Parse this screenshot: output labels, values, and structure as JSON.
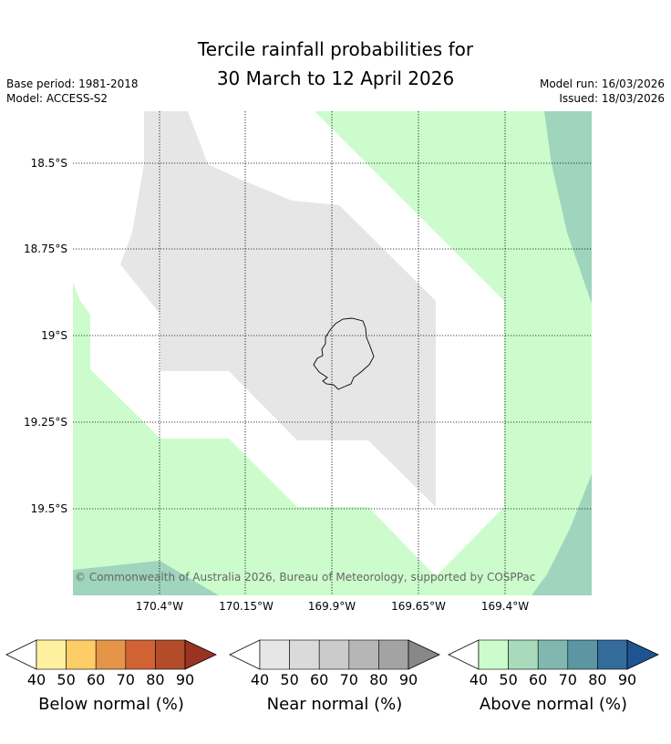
{
  "title": {
    "line1": "Tercile rainfall probabilities for",
    "line2": "30 March to 12 April 2026"
  },
  "meta": {
    "base_period": "Base period: 1981-2018",
    "model": "Model: ACCESS-S2",
    "model_run": "Model run: 16/03/2026",
    "issued": "Issued: 18/03/2026"
  },
  "axes": {
    "lat_labels": [
      "18.5°S",
      "18.75°S",
      "19°S",
      "19.25°S",
      "19.5°S"
    ],
    "lon_labels": [
      "170.4°W",
      "170.15°W",
      "169.9°W",
      "169.65°W",
      "169.4°W"
    ]
  },
  "copyright": "© Commonwealth of Australia 2026, Bureau of Meteorology, supported by COSPPac",
  "colors": {
    "near_40": "#e6e6e6",
    "above_40": "#ccfccc",
    "above_50": "#9fd4bd",
    "coast": "#000000"
  },
  "legends": [
    {
      "label": "Below normal (%)",
      "ticks": [
        "40",
        "50",
        "60",
        "70",
        "80",
        "90"
      ],
      "colors": [
        "#fff0a0",
        "#ffcd68",
        "#e49548",
        "#d06234",
        "#b24c2a",
        "#9b3322"
      ]
    },
    {
      "label": "Near normal (%)",
      "ticks": [
        "40",
        "50",
        "60",
        "70",
        "80",
        "90"
      ],
      "colors": [
        "#e6e6e6",
        "#dadada",
        "#cbcbcb",
        "#b6b6b6",
        "#a3a3a3",
        "#888888"
      ]
    },
    {
      "label": "Above normal (%)",
      "ticks": [
        "40",
        "50",
        "60",
        "70",
        "80",
        "90"
      ],
      "colors": [
        "#ccfccc",
        "#a8dbbb",
        "#80b8b0",
        "#5c95a3",
        "#336b9b",
        "#1d5491"
      ]
    }
  ]
}
